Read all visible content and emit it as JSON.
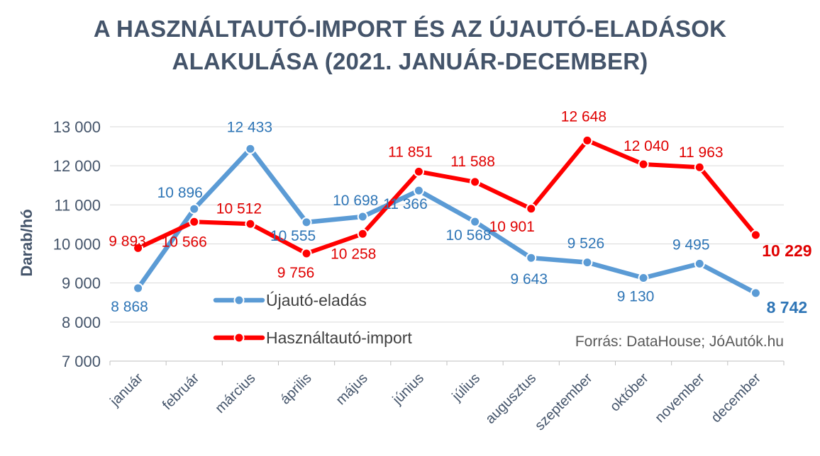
{
  "chart_data": {
    "type": "line",
    "title_lines": [
      "A HASZNÁLTAUTÓ-IMPORT ÉS AZ ÚJAUTÓ-ELADÁSOK",
      "ALAKULÁSA (2021. JANUÁR-DECEMBER)"
    ],
    "ylabel": "Darab/hó",
    "xlabel": "",
    "ylim": [
      7000,
      13000
    ],
    "yticks": [
      7000,
      8000,
      9000,
      10000,
      11000,
      12000,
      13000
    ],
    "ytick_labels": [
      "7 000",
      "8 000",
      "9 000",
      "10 000",
      "11 000",
      "12 000",
      "13 000"
    ],
    "grid": true,
    "categories": [
      "január",
      "február",
      "március",
      "április",
      "május",
      "június",
      "július",
      "augusztus",
      "szeptember",
      "október",
      "november",
      "december"
    ],
    "series": [
      {
        "name": "Újautó-eladás",
        "color": "#5B9BD5",
        "label_color": "#2E75B6",
        "values": [
          8868,
          10896,
          12433,
          10555,
          10698,
          11366,
          10568,
          9643,
          9526,
          9130,
          9495,
          8742
        ],
        "labels": [
          "8 868",
          "10 896",
          "12 433",
          "10 555",
          "10 698",
          "11 366",
          "10 568",
          "9 643",
          "9 526",
          "9 130",
          "9 495",
          "8 742"
        ]
      },
      {
        "name": "Használtautó-import",
        "color": "#FF0000",
        "label_color": "#E00000",
        "values": [
          9893,
          10566,
          10512,
          9756,
          10258,
          11851,
          11588,
          10901,
          12648,
          12040,
          11963,
          10229
        ],
        "labels": [
          "9 893",
          "10 566",
          "10 512",
          "9 756",
          "10 258",
          "11 851",
          "11 588",
          "10 901",
          "12 648",
          "12 040",
          "11 963",
          "10 229"
        ]
      }
    ],
    "legend_position": "inside-lower-center",
    "source": "Forrás: DataHouse; JóAutók.hu"
  }
}
